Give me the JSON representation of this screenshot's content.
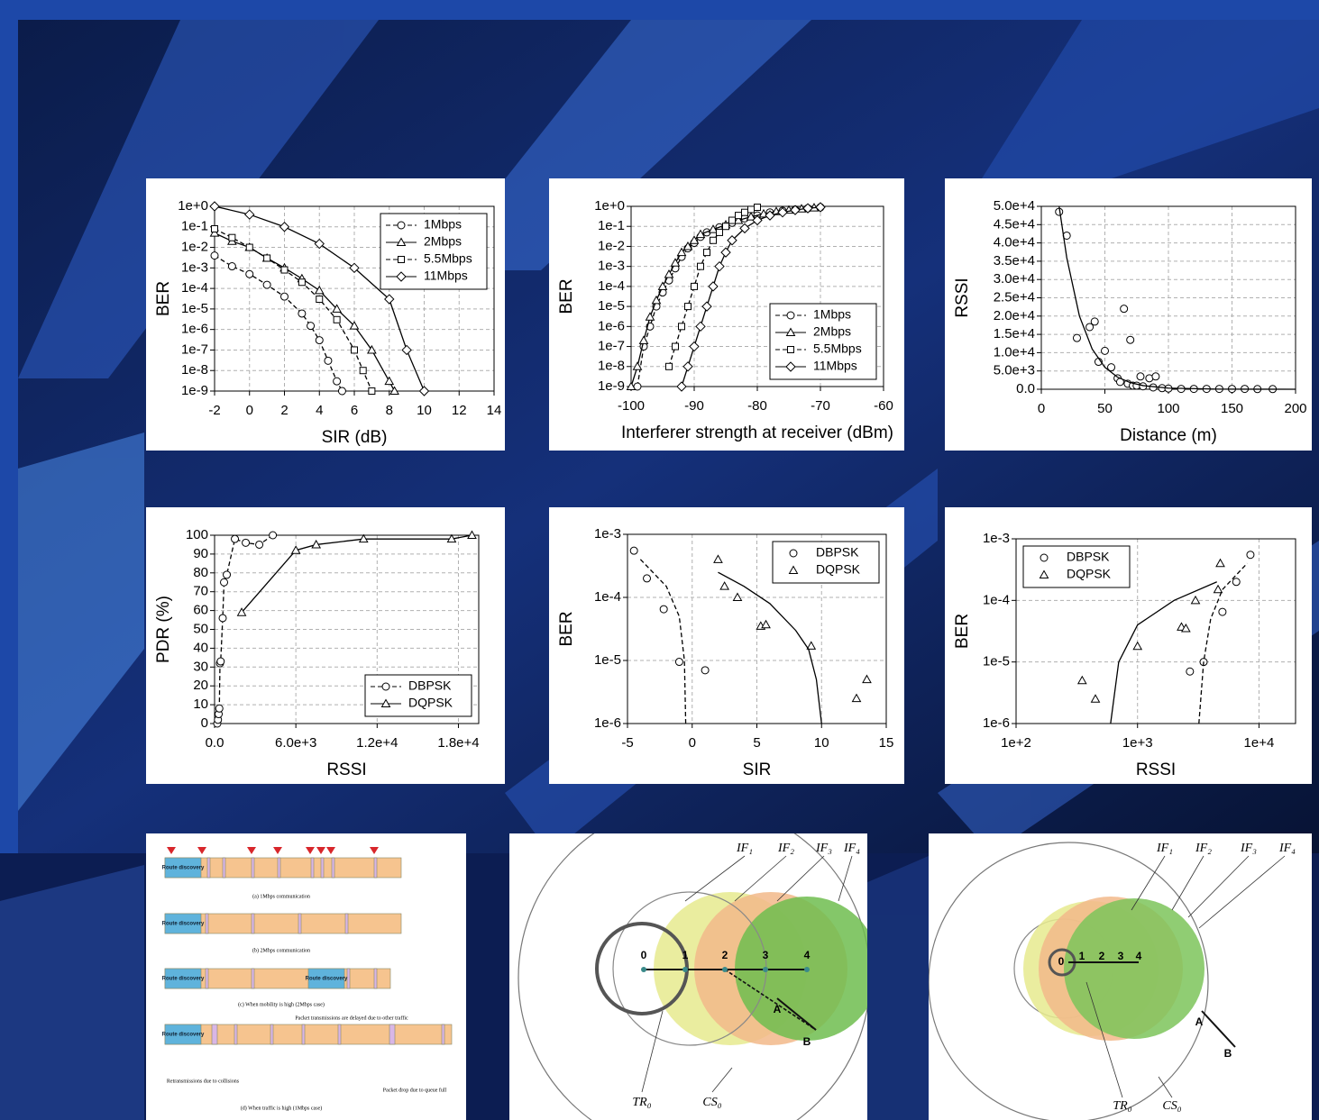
{
  "chart_data": [
    {
      "type": "line",
      "xlabel": "SIR (dB)",
      "ylabel": "BER",
      "xlim": [
        -2,
        14
      ],
      "ylim": [
        1e-09,
        1
      ],
      "yscale": "log",
      "grid": true,
      "legend": "upper-right",
      "xticks": [
        -2,
        0,
        2,
        4,
        6,
        8,
        10,
        12,
        14
      ],
      "yticks": [
        {
          "value": 1e-09,
          "label": "1e-9"
        },
        {
          "value": 1e-08,
          "label": "1e-8"
        },
        {
          "value": 1e-07,
          "label": "1e-7"
        },
        {
          "value": 1e-06,
          "label": "1e-6"
        },
        {
          "value": 1e-05,
          "label": "1e-5"
        },
        {
          "value": 0.0001,
          "label": "1e-4"
        },
        {
          "value": 0.001,
          "label": "1e-3"
        },
        {
          "value": 0.01,
          "label": "1e-2"
        },
        {
          "value": 0.1,
          "label": "1e-1"
        },
        {
          "value": 1,
          "label": "1e+0"
        }
      ],
      "series": [
        {
          "name": "1Mbps",
          "color": "#000000",
          "marker": "circle",
          "linestyle": "dashed",
          "x": [
            -2,
            -1,
            0,
            1,
            2,
            3,
            3.5,
            4,
            4.5,
            5,
            5.3
          ],
          "values": [
            0.004,
            0.0012,
            0.0005,
            0.00015,
            4e-05,
            6e-06,
            1.5e-06,
            3e-07,
            3e-08,
            3e-09,
            1e-09
          ]
        },
        {
          "name": "2Mbps",
          "color": "#000000",
          "marker": "triangle",
          "linestyle": "solid",
          "x": [
            -2,
            -1,
            0,
            1,
            2,
            3,
            4,
            5,
            6,
            7,
            8,
            8.3
          ],
          "values": [
            0.05,
            0.02,
            0.01,
            0.003,
            0.001,
            0.0003,
            8e-05,
            1e-05,
            1.5e-06,
            1e-07,
            3e-09,
            1e-09
          ]
        },
        {
          "name": "5.5Mbps",
          "color": "#000000",
          "marker": "square",
          "linestyle": "dashed",
          "x": [
            -2,
            -1,
            0,
            1,
            2,
            3,
            4,
            5,
            6,
            6.5,
            7
          ],
          "values": [
            0.08,
            0.03,
            0.01,
            0.003,
            0.0008,
            0.0002,
            3e-05,
            3e-06,
            1e-07,
            1e-08,
            1e-09
          ]
        },
        {
          "name": "11Mbps",
          "color": "#000000",
          "marker": "diamond",
          "linestyle": "solid",
          "x": [
            -2,
            0,
            2,
            4,
            6,
            8,
            9,
            10
          ],
          "values": [
            1,
            0.4,
            0.1,
            0.015,
            0.001,
            3e-05,
            1e-07,
            1e-09
          ]
        }
      ]
    },
    {
      "type": "line",
      "xlabel": "Interferer strength at receiver (dBm)",
      "ylabel": "BER",
      "xlim": [
        -100,
        -60
      ],
      "ylim": [
        1e-09,
        1
      ],
      "yscale": "log",
      "grid": true,
      "legend": "lower-right",
      "xticks": [
        -100,
        -90,
        -80,
        -70,
        -60
      ],
      "yticks": [
        {
          "value": 1e-09,
          "label": "1e-9"
        },
        {
          "value": 1e-08,
          "label": "1e-8"
        },
        {
          "value": 1e-07,
          "label": "1e-7"
        },
        {
          "value": 1e-06,
          "label": "1e-6"
        },
        {
          "value": 1e-05,
          "label": "1e-5"
        },
        {
          "value": 0.0001,
          "label": "1e-4"
        },
        {
          "value": 0.001,
          "label": "1e-3"
        },
        {
          "value": 0.01,
          "label": "1e-2"
        },
        {
          "value": 0.1,
          "label": "1e-1"
        },
        {
          "value": 1,
          "label": "1e+0"
        }
      ],
      "series": [
        {
          "name": "1Mbps",
          "color": "#000000",
          "marker": "circle",
          "linestyle": "dashed",
          "x": [
            -99,
            -98,
            -97,
            -96,
            -95,
            -94,
            -93,
            -92,
            -91,
            -90,
            -89,
            -88,
            -86,
            -84,
            -82,
            -80,
            -78,
            -76,
            -74,
            -72,
            -70
          ],
          "values": [
            1e-09,
            1e-07,
            1e-06,
            1e-05,
            5e-05,
            0.0002,
            0.0008,
            0.003,
            0.008,
            0.015,
            0.03,
            0.05,
            0.09,
            0.15,
            0.25,
            0.35,
            0.5,
            0.6,
            0.7,
            0.8,
            0.9
          ]
        },
        {
          "name": "2Mbps",
          "color": "#000000",
          "marker": "triangle",
          "linestyle": "solid",
          "x": [
            -100,
            -99,
            -98,
            -97,
            -96,
            -95,
            -94,
            -93,
            -92,
            -91,
            -90,
            -89,
            -87,
            -85,
            -83,
            -81,
            -79,
            -77,
            -75,
            -73,
            -71
          ],
          "values": [
            1e-09,
            1e-08,
            2e-07,
            3e-06,
            2e-05,
            0.0001,
            0.0004,
            0.0015,
            0.005,
            0.01,
            0.02,
            0.04,
            0.07,
            0.12,
            0.2,
            0.3,
            0.42,
            0.55,
            0.65,
            0.75,
            0.85
          ]
        },
        {
          "name": "5.5Mbps",
          "color": "#000000",
          "marker": "square",
          "linestyle": "dashed",
          "x": [
            -94,
            -93,
            -92,
            -91,
            -90,
            -89,
            -88,
            -87,
            -86,
            -85,
            -84,
            -83,
            -82,
            -81,
            -80
          ],
          "values": [
            1e-08,
            1e-07,
            1e-06,
            1e-05,
            0.0001,
            0.001,
            0.005,
            0.02,
            0.05,
            0.1,
            0.2,
            0.35,
            0.5,
            0.7,
            0.9
          ]
        },
        {
          "name": "11Mbps",
          "color": "#000000",
          "marker": "diamond",
          "linestyle": "solid",
          "x": [
            -92,
            -91,
            -90,
            -89,
            -88,
            -87,
            -86,
            -85,
            -84,
            -82,
            -80,
            -78,
            -76,
            -74,
            -72,
            -70
          ],
          "values": [
            1e-09,
            1e-08,
            1e-07,
            1e-06,
            1e-05,
            0.0001,
            0.001,
            0.005,
            0.02,
            0.08,
            0.2,
            0.35,
            0.5,
            0.65,
            0.8,
            0.9
          ]
        }
      ]
    },
    {
      "type": "scatter",
      "xlabel": "Distance (m)",
      "ylabel": "RSSI",
      "xlim": [
        0,
        200
      ],
      "ylim": [
        0,
        50000
      ],
      "grid": true,
      "xticks": [
        0,
        50,
        100,
        150,
        200
      ],
      "yticks": [
        {
          "value": 0,
          "label": "0.0"
        },
        {
          "value": 5000,
          "label": "5.0e+3"
        },
        {
          "value": 10000,
          "label": "1.0e+4"
        },
        {
          "value": 15000,
          "label": "1.5e+4"
        },
        {
          "value": 20000,
          "label": "2.0e+4"
        },
        {
          "value": 25000,
          "label": "2.5e+4"
        },
        {
          "value": 30000,
          "label": "3.0e+4"
        },
        {
          "value": 35000,
          "label": "3.5e+4"
        },
        {
          "value": 40000,
          "label": "4.0e+4"
        },
        {
          "value": 45000,
          "label": "4.5e+4"
        },
        {
          "value": 50000,
          "label": "5.0e+4"
        }
      ],
      "series": [
        {
          "color": "#000000",
          "marker": "circle",
          "linestyle": "none",
          "x": [
            14,
            20,
            28,
            38,
            42,
            45,
            50,
            55,
            60,
            62,
            65,
            68,
            70,
            72,
            75,
            78,
            80,
            85,
            88,
            90,
            95,
            100,
            110,
            120,
            130,
            140,
            150,
            160,
            170,
            182
          ],
          "values": [
            48500,
            42000,
            14000,
            17000,
            18500,
            7500,
            10500,
            6000,
            3000,
            2000,
            22000,
            1500,
            13500,
            1000,
            1000,
            3500,
            800,
            3000,
            500,
            3500,
            300,
            200,
            100,
            100,
            100,
            100,
            100,
            100,
            50,
            50
          ]
        },
        {
          "color": "#000000",
          "marker": "none",
          "linestyle": "solid",
          "x": [
            14,
            20,
            30,
            40,
            50,
            60,
            70,
            80,
            100,
            140,
            200
          ],
          "values": [
            50000,
            36000,
            20000,
            11000,
            6000,
            3300,
            1800,
            1000,
            300,
            30,
            0
          ]
        }
      ]
    },
    {
      "type": "line",
      "xlabel": "RSSI",
      "ylabel": "PDR (%)",
      "xlim": [
        0,
        19500
      ],
      "ylim": [
        0,
        100
      ],
      "grid": true,
      "legend": "lower-right",
      "xticks": [
        {
          "value": 0,
          "label": "0.0"
        },
        {
          "value": 6000,
          "label": "6.0e+3"
        },
        {
          "value": 12000,
          "label": "1.2e+4"
        },
        {
          "value": 18000,
          "label": "1.8e+4"
        }
      ],
      "yticks": [
        0,
        10,
        20,
        30,
        40,
        50,
        60,
        70,
        80,
        90,
        100
      ],
      "series": [
        {
          "name": "DBPSK",
          "color": "#000000",
          "marker": "circle",
          "linestyle": "dashed",
          "x": [
            200,
            250,
            300,
            350,
            400,
            450,
            600,
            700,
            900,
            1500,
            2300,
            3300,
            4300
          ],
          "values": [
            0,
            2,
            5,
            8,
            32,
            33,
            56,
            75,
            79,
            98,
            96,
            95,
            100
          ]
        },
        {
          "name": "DQPSK",
          "color": "#000000",
          "marker": "triangle",
          "linestyle": "solid",
          "x": [
            2000,
            6000,
            7500,
            11000,
            17500,
            19000
          ],
          "values": [
            59,
            92,
            95,
            98,
            98,
            100
          ]
        }
      ]
    },
    {
      "type": "scatter",
      "xlabel": "SIR",
      "ylabel": "BER",
      "xlim": [
        -5,
        15
      ],
      "ylim": [
        1e-06,
        0.001
      ],
      "yscale": "log",
      "grid": true,
      "legend": "upper-right",
      "xticks": [
        -5,
        0,
        5,
        10,
        15
      ],
      "yticks": [
        {
          "value": 1e-06,
          "label": "1e-6"
        },
        {
          "value": 1e-05,
          "label": "1e-5"
        },
        {
          "value": 0.0001,
          "label": "1e-4"
        },
        {
          "value": 0.001,
          "label": "1e-3"
        }
      ],
      "series": [
        {
          "name": "DBPSK",
          "color": "#000000",
          "marker": "circle",
          "linestyle": "none",
          "x": [
            -4.5,
            -3.5,
            -2.2,
            -1,
            1
          ],
          "values": [
            0.00055,
            0.0002,
            6.5e-05,
            9.5e-06,
            7e-06
          ]
        },
        {
          "name": "DQPSK",
          "color": "#000000",
          "marker": "triangle",
          "linestyle": "none",
          "x": [
            2,
            2.5,
            3.5,
            5.3,
            5.7,
            9.2,
            12.7,
            13.5
          ],
          "values": [
            0.0004,
            0.00015,
            0.0001,
            3.5e-05,
            3.7e-05,
            1.7e-05,
            2.5e-06,
            5e-06
          ]
        },
        {
          "color": "#000000",
          "marker": "none",
          "linestyle": "dashed",
          "x": [
            -4,
            -2,
            -1,
            -0.6,
            -0.5
          ],
          "values": [
            0.0004,
            0.00015,
            5e-05,
            1e-05,
            1e-06
          ]
        },
        {
          "color": "#000000",
          "marker": "none",
          "linestyle": "solid",
          "x": [
            2,
            4,
            6,
            8,
            9,
            9.6,
            10
          ],
          "values": [
            0.00025,
            0.00015,
            8e-05,
            3e-05,
            1.5e-05,
            5e-06,
            1e-06
          ]
        }
      ]
    },
    {
      "type": "scatter",
      "xlabel": "RSSI",
      "ylabel": "BER",
      "xlim": [
        100,
        20000
      ],
      "ylim": [
        1e-06,
        0.001
      ],
      "xscale": "log",
      "yscale": "log",
      "grid": true,
      "legend": "upper-left",
      "xticks": [
        {
          "value": 100,
          "label": "1e+2"
        },
        {
          "value": 1000,
          "label": "1e+3"
        },
        {
          "value": 10000,
          "label": "1e+4"
        }
      ],
      "yticks": [
        {
          "value": 1e-06,
          "label": "1e-6"
        },
        {
          "value": 1e-05,
          "label": "1e-5"
        },
        {
          "value": 0.0001,
          "label": "1e-4"
        },
        {
          "value": 0.001,
          "label": "1e-3"
        }
      ],
      "series": [
        {
          "name": "DBPSK",
          "color": "#000000",
          "marker": "circle",
          "linestyle": "none",
          "x": [
            2700,
            3500,
            5000,
            6500,
            8500
          ],
          "values": [
            7e-06,
            1e-05,
            6.5e-05,
            0.0002,
            0.00055
          ]
        },
        {
          "name": "DQPSK",
          "color": "#000000",
          "marker": "triangle",
          "linestyle": "none",
          "x": [
            350,
            450,
            1000,
            2300,
            2500,
            3000,
            4600,
            4800
          ],
          "values": [
            5e-06,
            2.5e-06,
            1.8e-05,
            3.7e-05,
            3.5e-05,
            0.0001,
            0.00015,
            0.0004
          ]
        },
        {
          "color": "#000000",
          "marker": "none",
          "linestyle": "solid",
          "x": [
            600,
            700,
            1000,
            2000,
            4500
          ],
          "values": [
            1e-06,
            1e-05,
            4e-05,
            0.0001,
            0.0002
          ]
        },
        {
          "color": "#000000",
          "marker": "none",
          "linestyle": "dashed",
          "x": [
            3200,
            3500,
            4000,
            5000,
            8000
          ],
          "values": [
            1e-06,
            1e-05,
            5e-05,
            0.00015,
            0.0004
          ]
        }
      ]
    }
  ],
  "diagrams": {
    "timeline": {
      "rows": [
        {
          "labels": [
            "Route discovery"
          ],
          "caption": "(a) 1Mbps communication"
        },
        {
          "labels": [
            "Route discovery"
          ],
          "caption": "(b) 2Mbps communication"
        },
        {
          "labels": [
            "Route discovery",
            "Route discovery"
          ],
          "caption": "(c) When mobility is high (2Mbps case)"
        },
        {
          "labels": [
            "Route discovery"
          ],
          "caption": "(d) When traffic is high (1Mbps case)"
        }
      ],
      "notes": [
        "Packet transmissions are delayed due to other traffic",
        "Retransmissions due to collisions",
        "Packet drop due to queue full"
      ]
    },
    "topology_a": {
      "nodes": [
        "0",
        "1",
        "2",
        "3",
        "4"
      ],
      "points": [
        "A",
        "B"
      ],
      "regions": [
        "IF₁",
        "IF₂",
        "IF₃",
        "IF₄",
        "TR₀",
        "CS₀"
      ]
    },
    "topology_b": {
      "nodes": [
        "0",
        "1",
        "2",
        "3",
        "4"
      ],
      "points": [
        "A",
        "B"
      ],
      "regions": [
        "IF₁",
        "IF₂",
        "IF₃",
        "IF₄",
        "TR₀",
        "CS₀"
      ]
    }
  }
}
